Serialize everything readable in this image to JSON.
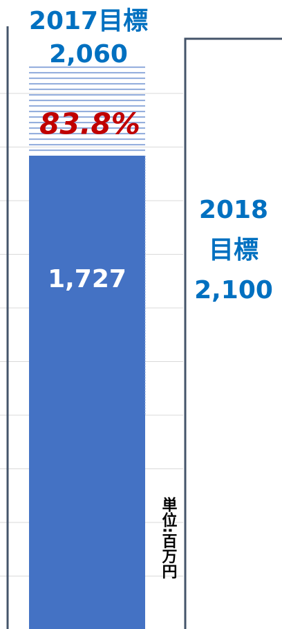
{
  "chart_data": {
    "type": "bar",
    "title": "2017目標",
    "target": 2060,
    "target_label": "2,060",
    "values": [
      1727
    ],
    "value_labels": [
      "1,727"
    ],
    "rate_label": "83.8%",
    "next_target_lines": [
      "2018",
      "目標",
      "2,100"
    ],
    "unit": "単位:百万円",
    "color": "#4472c4",
    "ylim": [
      0,
      2295
    ],
    "grid": true
  }
}
